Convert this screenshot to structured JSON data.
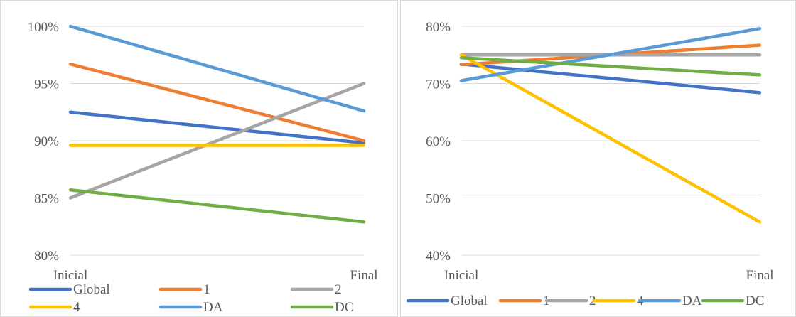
{
  "chart_data": [
    {
      "type": "line",
      "x": [
        "Inicial",
        "Final"
      ],
      "ylim": [
        0.8,
        1.0
      ],
      "y_ticks": [
        "80%",
        "85%",
        "90%",
        "95%",
        "100%"
      ],
      "grid": true,
      "legend_position": "bottom",
      "series": [
        {
          "name": "Global",
          "color": "#4472C4",
          "values": [
            0.925,
            0.898
          ]
        },
        {
          "name": "1",
          "color": "#ED7D31",
          "values": [
            0.967,
            0.9
          ]
        },
        {
          "name": "2",
          "color": "#A5A5A5",
          "values": [
            0.85,
            0.95
          ]
        },
        {
          "name": "4",
          "color": "#FFC000",
          "values": [
            0.896,
            0.896
          ]
        },
        {
          "name": "DA",
          "color": "#5B9BD5",
          "values": [
            1.0,
            0.926
          ]
        },
        {
          "name": "DC",
          "color": "#70AD47",
          "values": [
            0.857,
            0.829
          ]
        }
      ]
    },
    {
      "type": "line",
      "x": [
        "Inicial",
        "Final"
      ],
      "ylim": [
        0.4,
        0.8
      ],
      "y_ticks": [
        "40%",
        "50%",
        "60%",
        "70%",
        "80%"
      ],
      "grid": true,
      "legend_position": "bottom",
      "series": [
        {
          "name": "Global",
          "color": "#4472C4",
          "values": [
            0.734,
            0.684
          ]
        },
        {
          "name": "1",
          "color": "#ED7D31",
          "values": [
            0.733,
            0.767
          ]
        },
        {
          "name": "2",
          "color": "#A5A5A5",
          "values": [
            0.75,
            0.75
          ]
        },
        {
          "name": "4",
          "color": "#FFC000",
          "values": [
            0.75,
            0.458
          ]
        },
        {
          "name": "DA",
          "color": "#5B9BD5",
          "values": [
            0.705,
            0.796
          ]
        },
        {
          "name": "DC",
          "color": "#70AD47",
          "values": [
            0.745,
            0.715
          ]
        }
      ]
    }
  ]
}
